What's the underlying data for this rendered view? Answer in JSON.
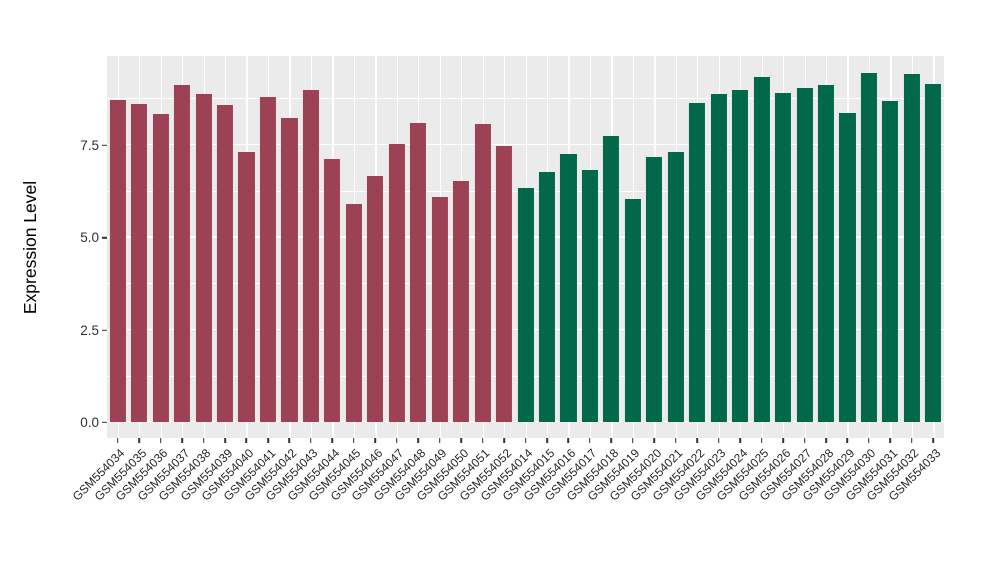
{
  "chart_data": {
    "type": "bar",
    "title": "",
    "xlabel": "",
    "ylabel": "Expression Level",
    "ylim": [
      -0.42,
      9.92
    ],
    "yticks": [
      0,
      2.5,
      5.0,
      7.5
    ],
    "ytick_labels": [
      "0.0",
      "2.5",
      "5.0",
      "7.5"
    ],
    "minor_gridlines": [
      1.25,
      3.75,
      6.25,
      8.75
    ],
    "grid": "white major and minor horizontal lines plus vertical line per category, on grey panel",
    "legend": "none",
    "bar_width_fraction": 0.75,
    "categories": [
      "GSM554034",
      "GSM554035",
      "GSM554036",
      "GSM554037",
      "GSM554038",
      "GSM554039",
      "GSM554040",
      "GSM554041",
      "GSM554042",
      "GSM554043",
      "GSM554044",
      "GSM554045",
      "GSM554046",
      "GSM554047",
      "GSM554048",
      "GSM554049",
      "GSM554050",
      "GSM554051",
      "GSM554052",
      "GSM554014",
      "GSM554015",
      "GSM554016",
      "GSM554017",
      "GSM554018",
      "GSM554019",
      "GSM554020",
      "GSM554021",
      "GSM554022",
      "GSM554023",
      "GSM554024",
      "GSM554025",
      "GSM554026",
      "GSM554027",
      "GSM554028",
      "GSM554029",
      "GSM554030",
      "GSM554031",
      "GSM554032",
      "GSM554033"
    ],
    "values": [
      8.72,
      8.61,
      8.34,
      9.13,
      8.88,
      8.59,
      7.33,
      8.81,
      8.25,
      8.99,
      7.12,
      5.92,
      6.67,
      7.55,
      8.11,
      6.1,
      6.55,
      8.07,
      7.48,
      6.36,
      6.79,
      7.28,
      6.83,
      7.75,
      6.04,
      7.19,
      7.32,
      8.66,
      8.88,
      8.99,
      9.35,
      8.93,
      9.06,
      9.13,
      8.39,
      9.45,
      8.7,
      9.42,
      9.15
    ],
    "groups": [
      {
        "name": "group-GSM554034-GSM554052",
        "color": "#9C4254",
        "count": 19
      },
      {
        "name": "group-GSM554014-GSM554033",
        "color": "#016849",
        "count": 20
      }
    ],
    "layout_hints": {
      "panel_bg": "#EBEBEB",
      "grid_color": "#FFFFFF",
      "tick_color": "#333333",
      "axis_text_color": "#313131",
      "x_label_angle_deg": 45,
      "legend_position": "none"
    }
  }
}
